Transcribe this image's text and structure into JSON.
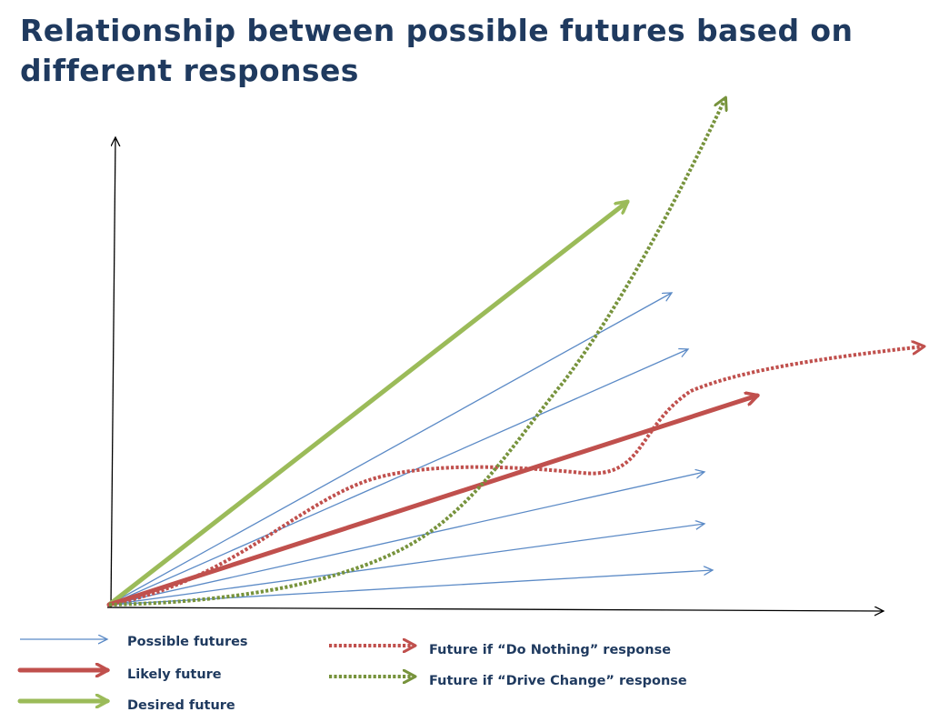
{
  "title": "Relationship between possible futures based on different responses",
  "colors": {
    "possible": "#5b8ac6",
    "likely": "#c0504d",
    "desired": "#9bbb59",
    "do_nothing": "#c0504d",
    "drive_change": "#77933c",
    "text": "#1f3a5f",
    "axis": "#000000"
  },
  "legend": {
    "possible_futures": "Possible futures",
    "likely_future": "Likely future",
    "desired_future": "Desired future",
    "do_nothing": "Future if “Do Nothing” response",
    "drive_change": "Future if “Drive Change” response"
  }
}
